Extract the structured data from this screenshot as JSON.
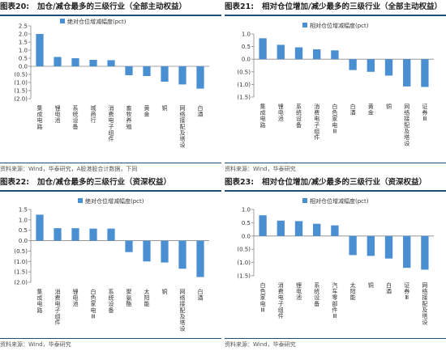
{
  "panels": [
    {
      "title_num": "图表20:",
      "title_text": "加仓/减仓最多的三级行业（全部主动权益）",
      "source": "资料来源：Wind，华泰研究，A股港股合计数据，下同",
      "chart_data": {
        "type": "bar",
        "legend": "绝对仓位增减幅度(pct)",
        "categories": [
          "集成电路",
          "锂电池",
          "系统设备",
          "城商行",
          "消费电子组件",
          "畜牧养殖",
          "黄金",
          "铜",
          "网络接配及塔设",
          "白酒"
        ],
        "values": [
          2.0,
          0.58,
          0.5,
          0.4,
          0.38,
          -0.55,
          -0.6,
          -0.95,
          -1.12,
          -1.38
        ],
        "yticks": [
          2.5,
          2.0,
          1.5,
          1.0,
          0.5,
          0.0,
          -0.5,
          -1.0,
          -1.5,
          -2.0
        ],
        "ytick_labels": [
          "2.5",
          "2.0",
          "1.5",
          "1.0",
          "0.5",
          "0.0",
          "(0.5)",
          "(1.0)",
          "(1.5)",
          "(2.0)"
        ],
        "ylim": [
          -2.0,
          2.5
        ]
      }
    },
    {
      "title_num": "图表21:",
      "title_text": "相对仓位增加/减少最多的三级行业（全部主动权益）",
      "source": "资料来源：Wind，华泰研究",
      "chart_data": {
        "type": "bar",
        "legend": "相对仓位增减幅度(pct)",
        "categories": [
          "集成电路",
          "锂电池",
          "系统设备",
          "消费电子组件",
          "白色家电Ⅲ",
          "白酒",
          "黄金",
          "铜",
          "网络接配及塔设",
          "证券Ⅲ"
        ],
        "values": [
          0.83,
          0.57,
          0.47,
          0.39,
          0.35,
          -0.43,
          -0.5,
          -0.65,
          -1.08,
          -1.1
        ],
        "yticks": [
          1.0,
          0.5,
          0.0,
          -0.5,
          -1.0,
          -1.5
        ],
        "ytick_labels": [
          "1.0",
          "0.5",
          "0.0",
          "(0.5)",
          "(1.0)",
          "(1.5)"
        ],
        "ylim": [
          -1.5,
          1.0
        ]
      }
    },
    {
      "title_num": "图表22:",
      "title_text": "加仓/减仓最多的三级行业（资深权益）",
      "source": "资料来源：Wind，华泰研究",
      "chart_data": {
        "type": "bar",
        "legend": "绝对仓位增减幅度(pct)",
        "categories": [
          "集成电路",
          "消费电子组件",
          "锂电池",
          "白色家电Ⅲ",
          "系统设备",
          "聚氨酯",
          "太阳能",
          "铜",
          "网络接配及塔设",
          "白酒"
        ],
        "values": [
          1.25,
          0.6,
          0.6,
          0.58,
          0.58,
          -0.55,
          -1.0,
          -1.05,
          -1.35,
          -1.75
        ],
        "yticks": [
          1.5,
          1.0,
          0.5,
          0.0,
          -0.5,
          -1.0,
          -1.5,
          -2.0
        ],
        "ytick_labels": [
          "1.5",
          "1.0",
          "0.5",
          "0.0",
          "(0.5)",
          "(1.0)",
          "(1.5)",
          "(2.0)"
        ],
        "ylim": [
          -2.0,
          1.5
        ]
      }
    },
    {
      "title_num": "图表23:",
      "title_text": "相对仓位增加/减少最多的三级行业（资深权益）",
      "source": "资料来源：Wind，华泰研究",
      "chart_data": {
        "type": "bar",
        "legend": "相对仓位增减幅度(pct)",
        "categories": [
          "白色家电Ⅲ",
          "消费电子组件",
          "锂电池",
          "系统设备",
          "汽车零部件Ⅲ",
          "太阳能",
          "铜",
          "白酒",
          "证券Ⅲ",
          "网络接配及塔设"
        ],
        "values": [
          0.78,
          0.58,
          0.56,
          0.46,
          0.4,
          -0.72,
          -0.75,
          -0.85,
          -1.2,
          -1.27
        ],
        "yticks": [
          1.0,
          0.5,
          0.0,
          -0.5,
          -1.0,
          -1.5
        ],
        "ytick_labels": [
          "1.0",
          "0.5",
          "0.0",
          "(0.5)",
          "(1.0)",
          "(1.5)"
        ],
        "ylim": [
          -1.5,
          1.0
        ]
      }
    }
  ],
  "colors": {
    "bar": "#4a8fd2",
    "title_rule": "#1f4e79",
    "axis": "#888888"
  }
}
